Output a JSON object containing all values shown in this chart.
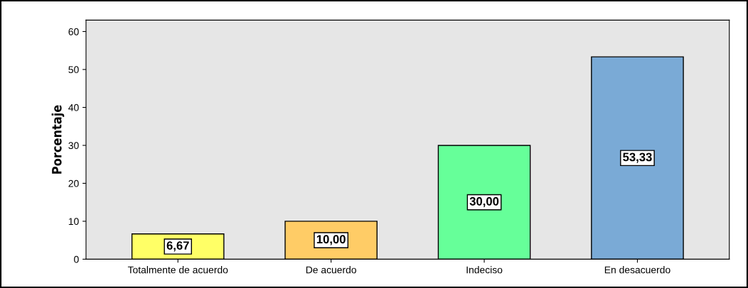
{
  "chart_data": {
    "type": "bar",
    "ylabel": "Porcentaje",
    "categories": [
      "Totalmente de acuerdo",
      "De acuerdo",
      "Indeciso",
      "En desacuerdo"
    ],
    "values": [
      6.67,
      10.0,
      30.0,
      53.33
    ],
    "colors": [
      "#ffff66",
      "#ffcc66",
      "#66ff99",
      "#7aaad6"
    ],
    "value_labels": [
      "6,67",
      "10,00",
      "30,00",
      "53,33"
    ],
    "ylim": [
      0,
      63
    ],
    "yticks": [
      0,
      10,
      20,
      30,
      40,
      50,
      60
    ],
    "grid": false,
    "legend": false
  }
}
